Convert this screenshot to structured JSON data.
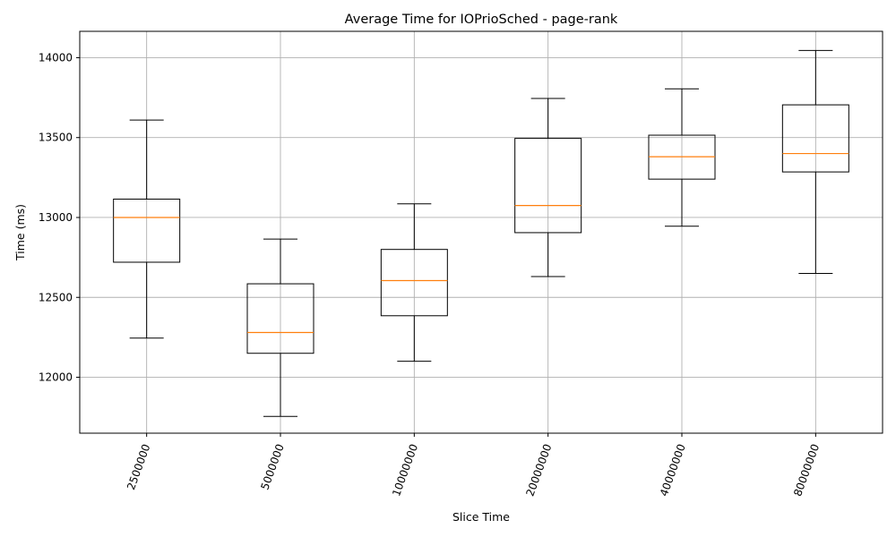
{
  "chart_data": {
    "type": "boxplot",
    "title": "Average Time for IOPrioSched - page-rank",
    "xlabel": "Slice Time",
    "ylabel": "Time (ms)",
    "ylim": [
      11650,
      14165
    ],
    "yticks": [
      12000,
      12500,
      13000,
      13500,
      14000
    ],
    "grid": true,
    "categories": [
      "2500000",
      "5000000",
      "10000000",
      "20000000",
      "40000000",
      "80000000"
    ],
    "boxes": [
      {
        "whisker_low": 12245,
        "q1": 12720,
        "median": 13000,
        "q3": 13115,
        "whisker_high": 13610
      },
      {
        "whisker_low": 11755,
        "q1": 12150,
        "median": 12280,
        "q3": 12585,
        "whisker_high": 12865
      },
      {
        "whisker_low": 12100,
        "q1": 12385,
        "median": 12605,
        "q3": 12800,
        "whisker_high": 13085
      },
      {
        "whisker_low": 12630,
        "q1": 12905,
        "median": 13075,
        "q3": 13495,
        "whisker_high": 13745
      },
      {
        "whisker_low": 12945,
        "q1": 13240,
        "median": 13380,
        "q3": 13515,
        "whisker_high": 13805
      },
      {
        "whisker_low": 12650,
        "q1": 13285,
        "median": 13400,
        "q3": 13705,
        "whisker_high": 14045
      }
    ],
    "colors": {
      "box": "#000000",
      "median": "#ff7f0e",
      "grid": "#b0b0b0"
    }
  }
}
